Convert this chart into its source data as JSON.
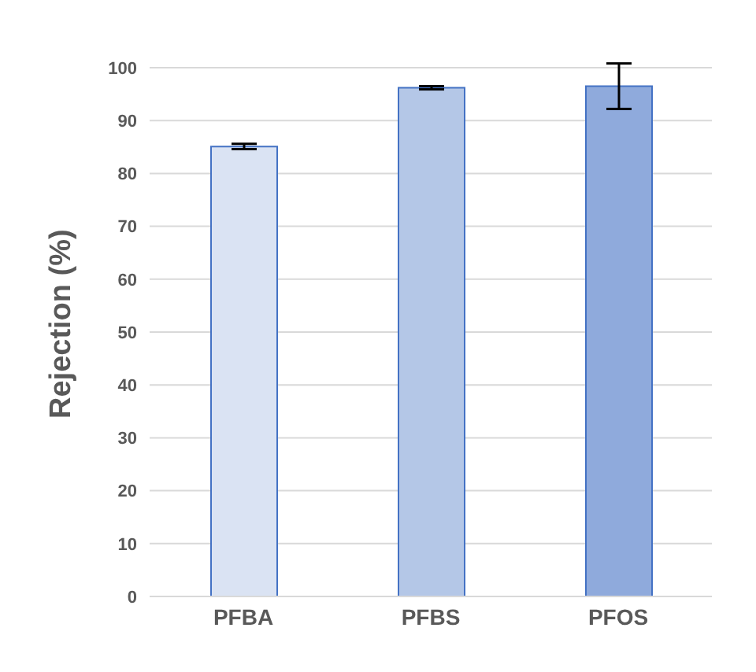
{
  "chart_data": {
    "type": "bar",
    "ylabel": "Rejection (%)",
    "categories": [
      "PFBA",
      "PFBS",
      "PFOS"
    ],
    "values": [
      85.1,
      96.2,
      96.5
    ],
    "colors": [
      "#dae3f3",
      "#b4c7e7",
      "#8faadc"
    ],
    "errors": [
      0.5,
      0.3,
      4.3
    ],
    "ylim": [
      0,
      100
    ],
    "yticks": [
      0,
      10,
      20,
      30,
      40,
      50,
      60,
      70,
      80,
      90,
      100
    ],
    "grid": "y"
  }
}
